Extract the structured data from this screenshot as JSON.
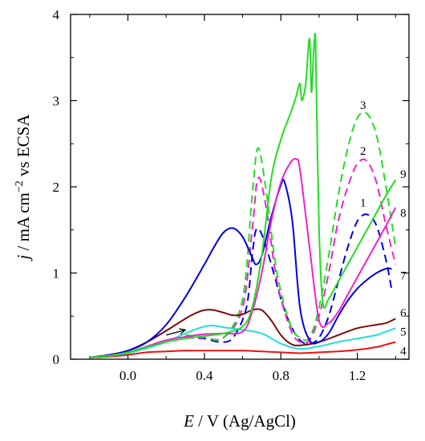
{
  "chart_data": {
    "type": "line",
    "title": "",
    "xlabel": {
      "italic": "E",
      "rest": " / V (Ag/AgCl)"
    },
    "ylabel": {
      "italic": "j",
      "rest": " / mA cm",
      "sup": "−2",
      "tail": " vs ECSA"
    },
    "xlim": [
      -0.3,
      1.47
    ],
    "ylim": [
      0,
      4
    ],
    "x_ticks": [
      0.0,
      0.4,
      0.8,
      1.2
    ],
    "x_tick_labels": [
      "0.0",
      "0.4",
      "0.8",
      "1.2"
    ],
    "y_ticks": [
      0,
      1,
      2,
      3,
      4
    ],
    "y_tick_labels": [
      "0",
      "1",
      "2",
      "3",
      "4"
    ],
    "grid": false,
    "legend": "none",
    "annotations": [
      {
        "type": "arrow",
        "from": [
          0.2,
          0.28
        ],
        "to": [
          0.3,
          0.34
        ]
      }
    ],
    "series": [
      {
        "name": "1",
        "color": "#0000dd",
        "dash": true,
        "label_at": [
          1.23,
          1.82
        ],
        "x": [
          0.3,
          0.4,
          0.48,
          0.55,
          0.62,
          0.65,
          0.67,
          0.7,
          0.75,
          0.8,
          0.85,
          0.9,
          0.95,
          1.0,
          1.05,
          1.1,
          1.15,
          1.2,
          1.25,
          1.3,
          1.35,
          1.38
        ],
        "y": [
          0.25,
          0.24,
          0.2,
          0.25,
          0.6,
          1.2,
          1.5,
          1.45,
          1.1,
          0.7,
          0.4,
          0.22,
          0.18,
          0.25,
          0.5,
          0.9,
          1.3,
          1.6,
          1.68,
          1.55,
          1.15,
          0.8
        ]
      },
      {
        "name": "2",
        "color": "#ee22cc",
        "dash": true,
        "label_at": [
          1.23,
          2.42
        ],
        "x": [
          0.3,
          0.4,
          0.5,
          0.6,
          0.65,
          0.68,
          0.72,
          0.78,
          0.85,
          0.9,
          0.95,
          1.0,
          1.05,
          1.1,
          1.15,
          1.2,
          1.25,
          1.3,
          1.35,
          1.4
        ],
        "y": [
          0.26,
          0.25,
          0.25,
          0.6,
          1.5,
          2.1,
          1.8,
          0.9,
          0.35,
          0.2,
          0.22,
          0.5,
          1.0,
          1.6,
          2.0,
          2.27,
          2.3,
          2.05,
          1.55,
          1.1
        ]
      },
      {
        "name": "3",
        "color": "#22dd22",
        "dash": true,
        "label_at": [
          1.23,
          2.95
        ],
        "x": [
          0.3,
          0.4,
          0.5,
          0.6,
          0.65,
          0.68,
          0.72,
          0.78,
          0.85,
          0.9,
          0.95,
          1.0,
          1.05,
          1.1,
          1.15,
          1.2,
          1.25,
          1.3,
          1.35,
          1.4
        ],
        "y": [
          0.28,
          0.26,
          0.25,
          0.7,
          1.9,
          2.45,
          2.0,
          1.0,
          0.4,
          0.25,
          0.25,
          0.6,
          1.2,
          1.9,
          2.45,
          2.8,
          2.85,
          2.6,
          2.0,
          1.3
        ]
      },
      {
        "name": "4",
        "color": "#ee1111",
        "dash": false,
        "label_at": [
          1.44,
          0.1
        ],
        "x": [
          -0.2,
          -0.1,
          0.0,
          0.1,
          0.2,
          0.3,
          0.4,
          0.5,
          0.6,
          0.7,
          0.8,
          0.9,
          1.0,
          1.1,
          1.2,
          1.3,
          1.35,
          1.4
        ],
        "y": [
          0.02,
          0.03,
          0.05,
          0.08,
          0.09,
          0.1,
          0.1,
          0.1,
          0.1,
          0.09,
          0.08,
          0.07,
          0.08,
          0.09,
          0.11,
          0.14,
          0.17,
          0.2
        ]
      },
      {
        "name": "5",
        "color": "#22dddd",
        "dash": false,
        "label_at": [
          1.44,
          0.32
        ],
        "x": [
          -0.2,
          -0.1,
          0.0,
          0.1,
          0.2,
          0.3,
          0.4,
          0.45,
          0.5,
          0.6,
          0.7,
          0.8,
          0.9,
          1.0,
          1.1,
          1.2,
          1.3,
          1.35,
          1.4
        ],
        "y": [
          0.02,
          0.04,
          0.07,
          0.13,
          0.2,
          0.3,
          0.38,
          0.39,
          0.37,
          0.34,
          0.3,
          0.18,
          0.12,
          0.15,
          0.2,
          0.24,
          0.28,
          0.32,
          0.36
        ]
      },
      {
        "name": "6",
        "color": "#7a0a0a",
        "dash": false,
        "label_at": [
          1.44,
          0.54
        ],
        "x": [
          -0.2,
          -0.1,
          0.0,
          0.1,
          0.2,
          0.3,
          0.35,
          0.4,
          0.45,
          0.5,
          0.55,
          0.6,
          0.65,
          0.7,
          0.75,
          0.8,
          0.85,
          0.9,
          1.0,
          1.1,
          1.2,
          1.3,
          1.35,
          1.4
        ],
        "y": [
          0.02,
          0.04,
          0.1,
          0.2,
          0.33,
          0.47,
          0.53,
          0.57,
          0.57,
          0.54,
          0.51,
          0.52,
          0.57,
          0.57,
          0.45,
          0.28,
          0.18,
          0.16,
          0.2,
          0.28,
          0.36,
          0.4,
          0.42,
          0.47
        ]
      },
      {
        "name": "7",
        "color": "#0000dd",
        "dash": false,
        "label_at": [
          1.44,
          0.97
        ],
        "x": [
          -0.2,
          -0.1,
          0.0,
          0.1,
          0.2,
          0.3,
          0.4,
          0.45,
          0.5,
          0.55,
          0.6,
          0.65,
          0.67,
          0.7,
          0.75,
          0.8,
          0.82,
          0.86,
          0.9,
          0.95,
          1.0,
          1.05,
          1.1,
          1.15,
          1.2,
          1.25,
          1.3,
          1.35,
          1.38
        ],
        "y": [
          0.02,
          0.05,
          0.1,
          0.2,
          0.4,
          0.72,
          1.1,
          1.3,
          1.47,
          1.52,
          1.42,
          1.18,
          1.1,
          1.2,
          1.65,
          2.02,
          2.05,
          1.6,
          0.6,
          0.22,
          0.2,
          0.3,
          0.5,
          0.68,
          0.82,
          0.92,
          1.0,
          1.05,
          1.05
        ]
      },
      {
        "name": "8",
        "color": "#ee22cc",
        "dash": false,
        "label_at": [
          1.44,
          1.7
        ],
        "x": [
          -0.2,
          -0.1,
          0.0,
          0.1,
          0.2,
          0.3,
          0.4,
          0.5,
          0.6,
          0.65,
          0.7,
          0.75,
          0.8,
          0.85,
          0.88,
          0.9,
          0.95,
          1.0,
          1.05,
          1.1,
          1.15,
          1.2,
          1.3,
          1.35,
          1.4
        ],
        "y": [
          0.02,
          0.04,
          0.08,
          0.15,
          0.22,
          0.26,
          0.29,
          0.3,
          0.32,
          0.55,
          1.0,
          1.6,
          2.05,
          2.28,
          2.32,
          2.2,
          1.3,
          0.45,
          0.42,
          0.55,
          0.75,
          0.95,
          1.35,
          1.55,
          1.76
        ]
      },
      {
        "name": "9",
        "color": "#22dd22",
        "dash": false,
        "label_at": [
          1.44,
          2.15
        ],
        "x": [
          -0.2,
          -0.1,
          0.0,
          0.1,
          0.2,
          0.3,
          0.4,
          0.5,
          0.6,
          0.65,
          0.7,
          0.75,
          0.8,
          0.85,
          0.88,
          0.9,
          0.91,
          0.93,
          0.95,
          0.96,
          0.97,
          0.98,
          0.985,
          1.0,
          1.02,
          1.05,
          1.1,
          1.15,
          1.2,
          1.25,
          1.3,
          1.35,
          1.4
        ],
        "y": [
          0.02,
          0.04,
          0.08,
          0.14,
          0.2,
          0.24,
          0.27,
          0.3,
          0.38,
          0.6,
          1.2,
          2.1,
          2.55,
          2.85,
          3.05,
          3.2,
          3.0,
          3.2,
          3.72,
          3.1,
          3.5,
          3.77,
          3.2,
          1.5,
          0.65,
          0.7,
          0.9,
          1.1,
          1.3,
          1.5,
          1.7,
          1.9,
          2.08
        ]
      }
    ]
  }
}
